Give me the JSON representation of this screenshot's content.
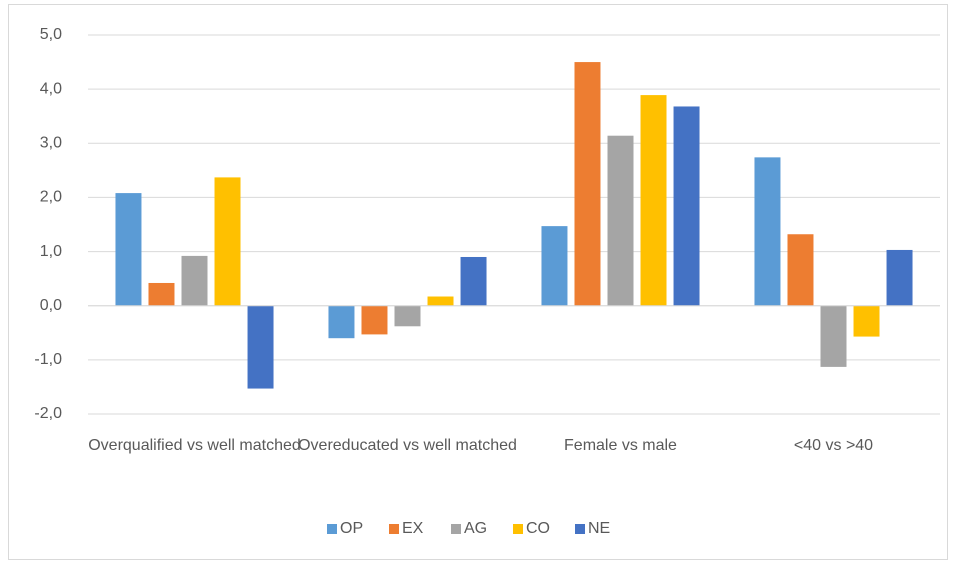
{
  "chart_data": {
    "type": "bar",
    "categories": [
      "Overqualified vs well matched",
      "Overeducated vs well matched",
      "Female vs male",
      "<40 vs >40"
    ],
    "series": [
      {
        "name": "OP",
        "color": "#5b9bd5",
        "values": [
          2.08,
          -0.6,
          1.47,
          2.74
        ]
      },
      {
        "name": "EX",
        "color": "#ed7d31",
        "values": [
          0.42,
          -0.53,
          4.5,
          1.32
        ]
      },
      {
        "name": "AG",
        "color": "#a5a5a5",
        "values": [
          0.92,
          -0.38,
          3.14,
          -1.13
        ]
      },
      {
        "name": "CO",
        "color": "#ffc000",
        "values": [
          2.37,
          0.17,
          3.89,
          -0.57
        ]
      },
      {
        "name": "NE",
        "color": "#4472c4",
        "values": [
          -1.53,
          0.9,
          3.68,
          1.03
        ]
      }
    ],
    "ylim": [
      -2,
      5
    ],
    "yticks": [
      {
        "value": -2,
        "label": "-2,0"
      },
      {
        "value": -1,
        "label": "-1,0"
      },
      {
        "value": 0,
        "label": "0,0"
      },
      {
        "value": 1,
        "label": "1,0"
      },
      {
        "value": 2,
        "label": "2,0"
      },
      {
        "value": 3,
        "label": "3,0"
      },
      {
        "value": 4,
        "label": "4,0"
      },
      {
        "value": 5,
        "label": "5,0"
      }
    ],
    "grid": true,
    "legend": "bottom"
  }
}
